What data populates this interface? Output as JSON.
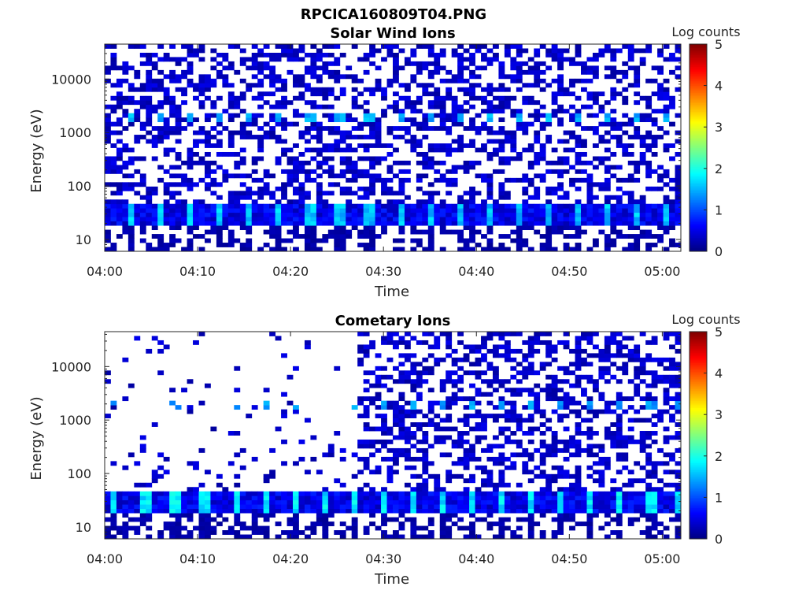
{
  "figure_title": "RPCICA160809T04.PNG",
  "chart_data": [
    {
      "type": "heatmap",
      "title": "Solar Wind Ions",
      "xlabel": "Time",
      "ylabel": "Energy (eV)",
      "x_ticks": [
        "04:00",
        "04:10",
        "04:20",
        "04:30",
        "04:40",
        "04:50",
        "05:00"
      ],
      "x_range": [
        "04:00",
        "05:02"
      ],
      "y_scale": "log",
      "y_ticks": [
        "10",
        "100",
        "1000",
        "10000"
      ],
      "y_range": [
        6,
        45000
      ],
      "colorbar": {
        "label": "Log counts",
        "range": [
          0,
          5
        ],
        "ticks": [
          "0",
          "1",
          "2",
          "3",
          "4",
          "5"
        ],
        "colormap": "jet"
      },
      "features": {
        "background_energy_ev": [
          15,
          40000
        ],
        "background_level_log_counts": 0.4,
        "low_band_energy_ev": [
          20,
          45
        ],
        "low_band_peak_log_counts": 1.8,
        "mid_band_energy_ev": [
          1500,
          2200
        ],
        "mid_band_peak_log_counts": 1.7,
        "pulse_period_min": 3.2,
        "pulse_start_min": 2.2
      }
    },
    {
      "type": "heatmap",
      "title": "Cometary Ions",
      "xlabel": "Time",
      "ylabel": "Energy (eV)",
      "x_ticks": [
        "04:00",
        "04:10",
        "04:20",
        "04:30",
        "04:40",
        "04:50",
        "05:00"
      ],
      "x_range": [
        "04:00",
        "05:02"
      ],
      "y_scale": "log",
      "y_ticks": [
        "10",
        "100",
        "1000",
        "10000"
      ],
      "y_range": [
        6,
        45000
      ],
      "colorbar": {
        "label": "Log counts",
        "range": [
          0,
          5
        ],
        "ticks": [
          "0",
          "1",
          "2",
          "3",
          "4",
          "5"
        ],
        "colormap": "jet"
      },
      "features": {
        "sparse_before_time": "04:27",
        "background_energy_ev": [
          15,
          40000
        ],
        "background_level_log_counts": 0.4,
        "low_band_energy_ev": [
          20,
          45
        ],
        "low_band_peak_log_counts": 2.0,
        "mid_band_energy_ev": [
          1500,
          2200
        ],
        "mid_band_peak_log_counts": 1.6,
        "pulse_period_min": 3.2,
        "pulse_start_min": 0.5
      }
    }
  ]
}
